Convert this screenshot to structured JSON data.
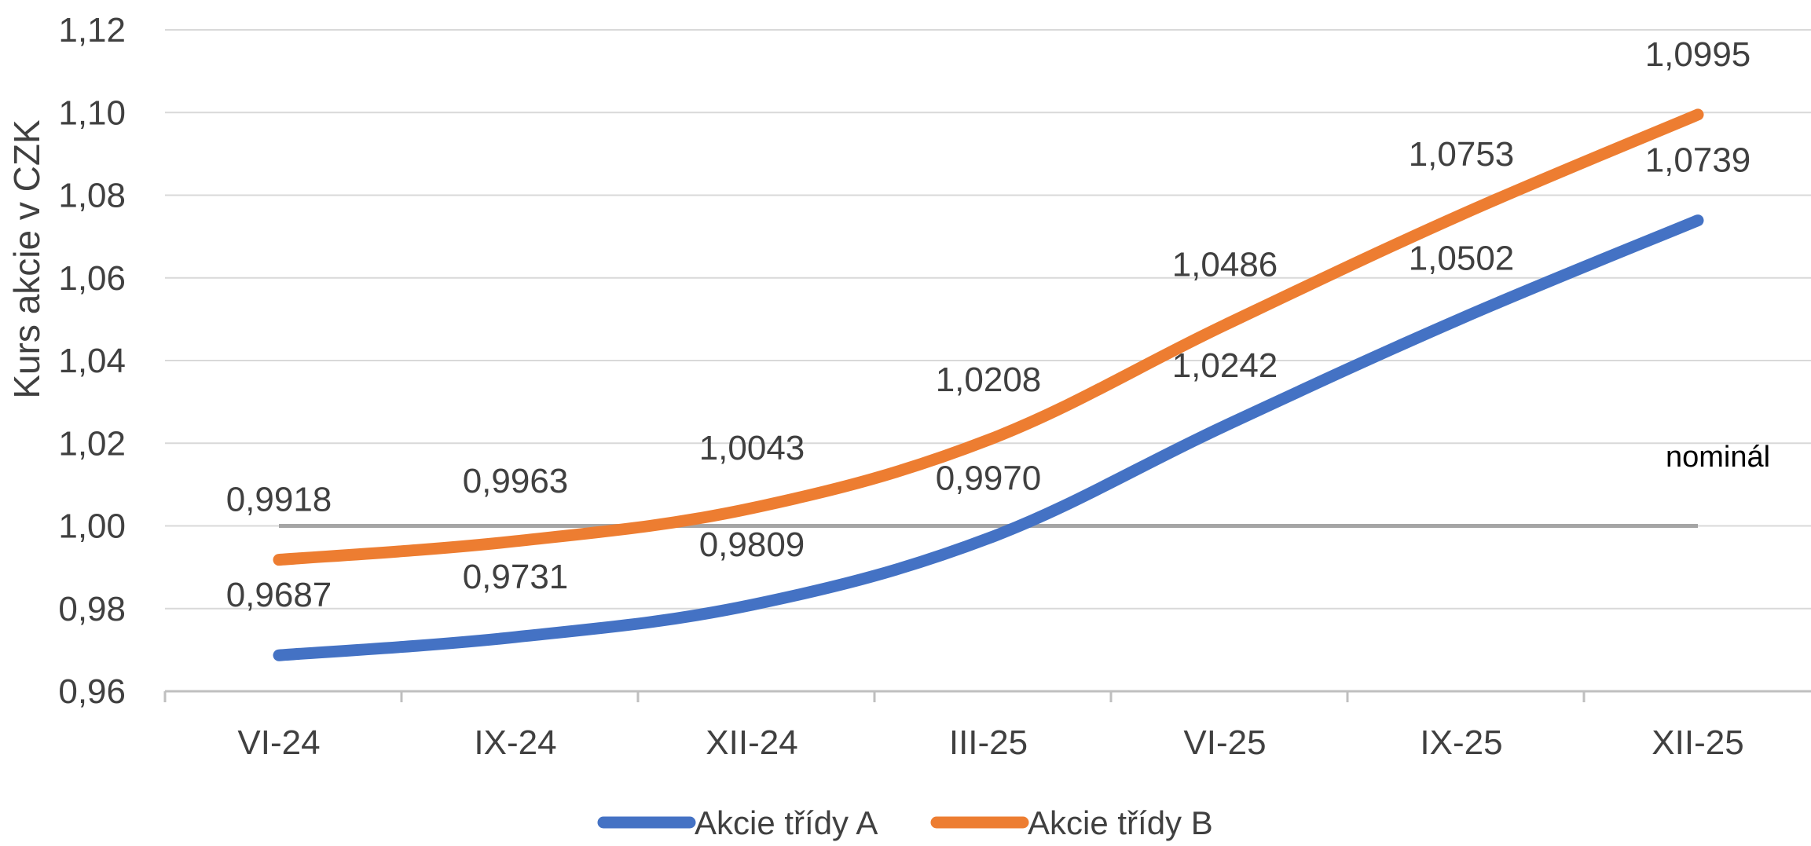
{
  "chart_data": {
    "type": "line",
    "categories": [
      "VI-24",
      "IX-24",
      "XII-24",
      "III-25",
      "VI-25",
      "IX-25",
      "XII-25"
    ],
    "series": [
      {
        "name": "Akcie třídy A",
        "color": "#4472C4",
        "values": [
          0.9687,
          0.9731,
          0.9809,
          0.997,
          1.0242,
          1.0502,
          1.0739
        ],
        "labels": [
          "0,9687",
          "0,9731",
          "0,9809",
          "0,9970",
          "1,0242",
          "1,0502",
          "1,0739"
        ]
      },
      {
        "name": "Akcie třídy B",
        "color": "#ED7D31",
        "values": [
          0.9918,
          0.9963,
          1.0043,
          1.0208,
          1.0486,
          1.0753,
          1.0995
        ],
        "labels": [
          "0,9918",
          "0,9963",
          "1,0043",
          "1,0208",
          "1,0486",
          "1,0753",
          "1,0995"
        ]
      },
      {
        "name": "nominál",
        "color": "#A5A5A5",
        "values": [
          1.0,
          1.0,
          1.0,
          1.0,
          1.0,
          1.0,
          1.0
        ]
      }
    ],
    "yticks": [
      "0,96",
      "0,98",
      "1,00",
      "1,02",
      "1,04",
      "1,06",
      "1,08",
      "1,10",
      "1,12"
    ],
    "ylim": [
      0.96,
      1.12
    ],
    "ylabel": "Kurs akcie v CZK",
    "xlabel": "",
    "grid": true,
    "legend_position": "bottom",
    "nominal_label": "nominál"
  }
}
